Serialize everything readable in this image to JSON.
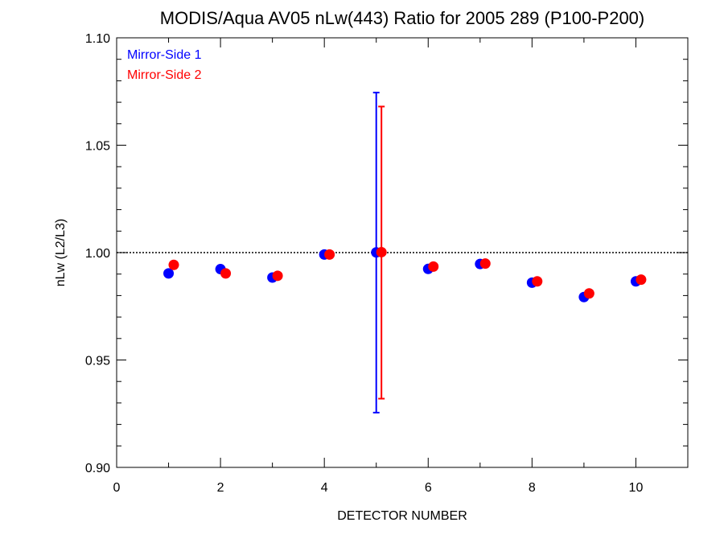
{
  "chart_data": {
    "type": "scatter",
    "title": "MODIS/Aqua AV05 nLw(443) Ratio for 2005 289 (P100-P200)",
    "xlabel": "DETECTOR NUMBER",
    "ylabel": "nLw (L2/L3)",
    "xlim": [
      0,
      11
    ],
    "ylim": [
      0.9,
      1.1
    ],
    "x_ticks": [
      0,
      2,
      4,
      6,
      8,
      10
    ],
    "x_tick_labels": [
      "0",
      "2",
      "4",
      "6",
      "8",
      "10"
    ],
    "y_ticks": [
      0.9,
      0.95,
      1.0,
      1.05,
      1.1
    ],
    "y_tick_labels": [
      "0.90",
      "0.95",
      "1.00",
      "1.05",
      "1.10"
    ],
    "reference_line": {
      "y": 1.0,
      "style": "dotted"
    },
    "legend_position": "top-left",
    "series": [
      {
        "name": "Mirror-Side 1",
        "color": "#0000ff",
        "x": [
          1,
          2,
          3,
          4,
          5,
          6,
          7,
          8,
          9,
          10
        ],
        "y": [
          0.9903,
          0.9923,
          0.9884,
          0.9991,
          1.0001,
          0.9924,
          0.9947,
          0.986,
          0.9793,
          0.9866
        ],
        "error_bars": [
          {
            "x": 5,
            "low": 0.9255,
            "high": 1.0745
          }
        ]
      },
      {
        "name": "Mirror-Side 2",
        "color": "#ff0000",
        "x": [
          1.1,
          2.1,
          3.1,
          4.1,
          5.1,
          6.1,
          7.1,
          8.1,
          9.1,
          10.1
        ],
        "y": [
          0.9943,
          0.9903,
          0.9892,
          0.9991,
          1.0002,
          0.9935,
          0.9949,
          0.9866,
          0.981,
          0.9874
        ],
        "error_bars": [
          {
            "x": 5.1,
            "low": 0.932,
            "high": 1.068
          }
        ]
      }
    ]
  }
}
